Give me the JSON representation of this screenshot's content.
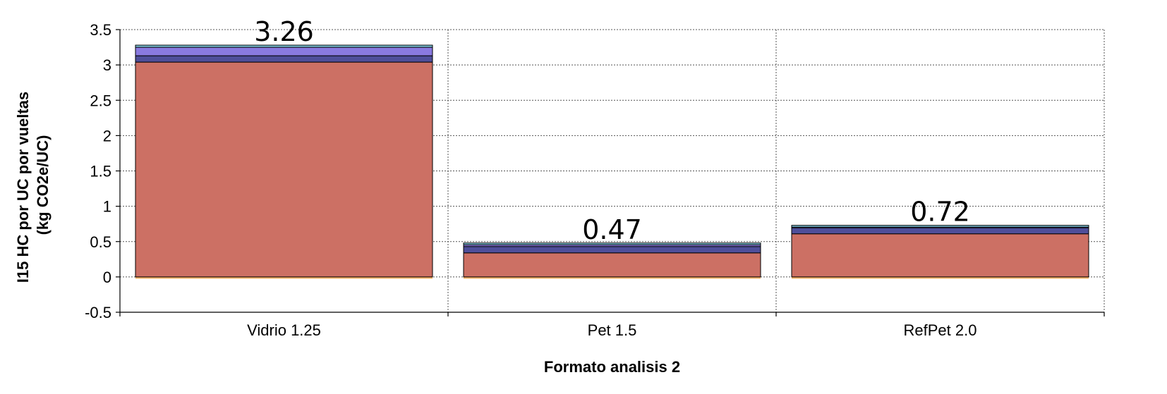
{
  "chart_data": {
    "type": "bar",
    "stacked": true,
    "xlabel": "Formato analisis 2",
    "ylabel": [
      "I15 HC por UC por vueltas",
      "(kg CO2e/UC)"
    ],
    "ylim": [
      -0.5,
      3.5
    ],
    "yticks": [
      "3.5",
      "3",
      "2.5",
      "2",
      "1.5",
      "1",
      "0.5",
      "0",
      "-0.5"
    ],
    "ytick_values": [
      3.5,
      3,
      2.5,
      2,
      1.5,
      1,
      0.5,
      0,
      -0.5
    ],
    "grid": true,
    "categories": [
      "Vidrio 1.25",
      "Pet 1.5",
      "RefPet 2.0"
    ],
    "totals": [
      "3.26",
      "0.47",
      "0.72"
    ],
    "series": [
      {
        "color": "#f4b064",
        "values": [
          -0.02,
          -0.01,
          -0.01
        ]
      },
      {
        "color": "#cc7064",
        "values": [
          3.04,
          0.34,
          0.61
        ]
      },
      {
        "color": "#4f4f9a",
        "values": [
          0.09,
          0.09,
          0.09
        ]
      },
      {
        "color": "#8a7ae0",
        "values": [
          0.12,
          0.04,
          0.02
        ]
      },
      {
        "color": "#7ec8dc",
        "values": [
          0.03,
          0.01,
          0.01
        ]
      }
    ]
  }
}
